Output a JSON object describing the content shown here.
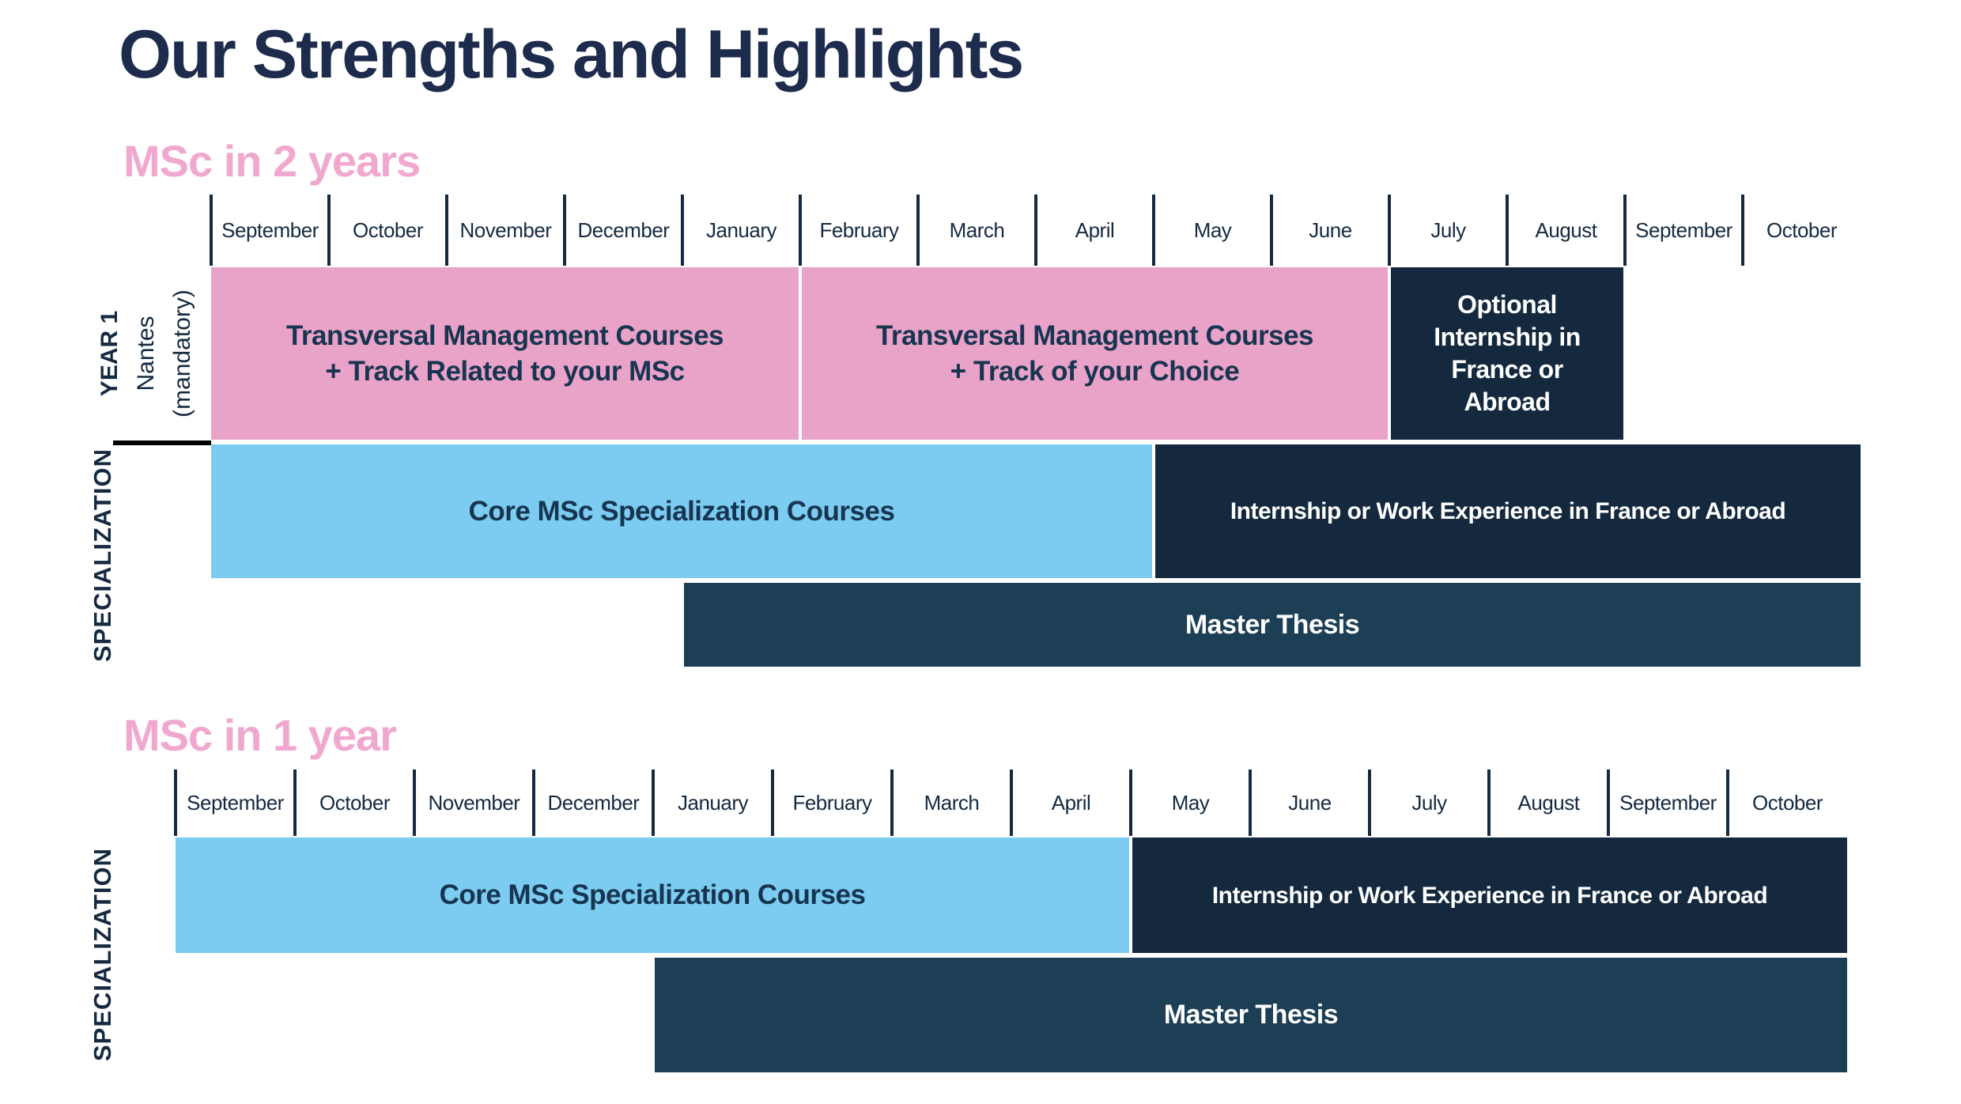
{
  "title": "Our Strengths and Highlights",
  "colors": {
    "title_navy": "#1d2b4d",
    "navy_text": "#152a40",
    "pink_heading": "#f1a8cf",
    "pink_bar": "#e9a2c8",
    "blue_bar": "#7bccf0",
    "dark_bar": "#14293d",
    "thesis_bar": "#1d3f55",
    "bar_text_dark": "#173450",
    "bar_text_light": "#ffffff"
  },
  "sections": [
    {
      "heading": "MSc in 2 years",
      "months": [
        "September",
        "October",
        "November",
        "December",
        "January",
        "February",
        "March",
        "April",
        "May",
        "June",
        "July",
        "August",
        "September",
        "October"
      ],
      "side_labels": {
        "year1_lines": [
          "YEAR 1",
          "Nantes",
          "(mandatory)"
        ],
        "specialization": "SPECIALIZATION"
      },
      "rows": [
        {
          "name": "year1-row",
          "bars": [
            {
              "id": "transversal-track-related",
              "text": "Transversal Management Courses\n+ Track Related to your MSc",
              "start": 0,
              "span": 5,
              "variant": "pink"
            },
            {
              "id": "transversal-track-choice",
              "text": "Transversal Management Courses\n+ Track of your Choice",
              "start": 5,
              "span": 5,
              "variant": "pink"
            },
            {
              "id": "optional-internship",
              "text": "Optional Internship in France or Abroad",
              "start": 10,
              "span": 2,
              "variant": "dark",
              "narrow": true
            }
          ]
        },
        {
          "name": "specialization-row",
          "bars": [
            {
              "id": "core-msc-courses",
              "text": "Core MSc Specialization Courses",
              "start": 0,
              "span": 8,
              "variant": "blue"
            },
            {
              "id": "internship-work-experience",
              "text": "Internship or Work Experience in France or Abroad",
              "start": 8,
              "span": 6,
              "variant": "dark"
            }
          ]
        },
        {
          "name": "master-thesis-row",
          "bars": [
            {
              "id": "master-thesis",
              "text": "Master Thesis",
              "start": 4,
              "span": 10,
              "variant": "thesis"
            }
          ]
        }
      ]
    },
    {
      "heading": "MSc in 1 year",
      "months": [
        "September",
        "October",
        "November",
        "December",
        "January",
        "February",
        "March",
        "April",
        "May",
        "June",
        "July",
        "August",
        "September",
        "October"
      ],
      "side_labels": {
        "specialization": "SPECIALIZATION"
      },
      "rows": [
        {
          "name": "specialization-row",
          "bars": [
            {
              "id": "core-msc-courses",
              "text": "Core MSc Specialization Courses",
              "start": 0,
              "span": 8,
              "variant": "blue"
            },
            {
              "id": "internship-work-experience",
              "text": "Internship or Work Experience in France or Abroad",
              "start": 8,
              "span": 6,
              "variant": "dark"
            }
          ]
        },
        {
          "name": "master-thesis-row",
          "bars": [
            {
              "id": "master-thesis",
              "text": "Master Thesis",
              "start": 4,
              "span": 10,
              "variant": "thesis"
            }
          ]
        }
      ]
    }
  ]
}
